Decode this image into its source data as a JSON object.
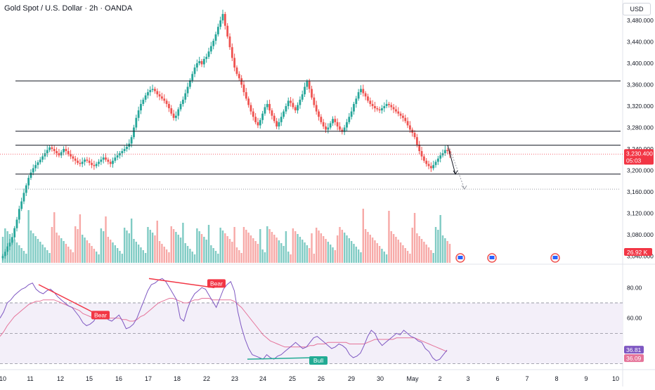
{
  "header": {
    "title": "Gold Spot / U.S. Dollar · 2h · OANDA",
    "currency_button": "USD"
  },
  "price_axis": {
    "ticks": [
      "3,480.000",
      "3,440.000",
      "3,400.000",
      "3,360.000",
      "3,320.000",
      "3,280.000",
      "3,240.000",
      "3,200.000",
      "3,160.000",
      "3,120.000",
      "3,080.000",
      "3,040.000"
    ],
    "tick_values": [
      3480,
      3440,
      3400,
      3360,
      3320,
      3280,
      3240,
      3200,
      3160,
      3120,
      3080,
      3040
    ],
    "last_price_label": "3,230.400",
    "countdown_label": "05:03",
    "volume_label": "26.92 K"
  },
  "rsi_axis": {
    "ticks": [
      "80.00",
      "60.00",
      "40.00"
    ],
    "tick_values": [
      80,
      60,
      40
    ],
    "rsi_label": "36.81",
    "rsi_ma_label": "36.09"
  },
  "time_axis": {
    "labels": [
      "10",
      "11",
      "12",
      "15",
      "16",
      "17",
      "18",
      "22",
      "23",
      "24",
      "25",
      "26",
      "29",
      "30",
      "May",
      "2",
      "3",
      "6",
      "7",
      "8",
      "9",
      "10"
    ]
  },
  "annotations": {
    "bear_1": "Bear",
    "bear_2": "Bear",
    "bull_1": "Bull"
  },
  "colors": {
    "up": "#26a69a",
    "down": "#ef5350",
    "rsi": "#7e57c2",
    "rsi_ma": "#e57399",
    "line": "#131722",
    "last_price": "#f23645",
    "rsi_band": "#f3eff9",
    "rsi_fill_up": "#b2dfdb"
  },
  "chart_data": {
    "type": "candlestick",
    "title": "Gold Spot / U.S. Dollar · 2h · OANDA",
    "price_range": [
      3030,
      3505
    ],
    "rsi_range": [
      28,
      88
    ],
    "horizontal_levels": [
      3367,
      3273,
      3247,
      3193
    ],
    "dotted_levels": [
      3230.4,
      3165
    ],
    "projection": [
      [
        3247,
        3193
      ],
      [
        3240,
        3165
      ]
    ],
    "candle_closes": [
      3040,
      3048,
      3058,
      3065,
      3075,
      3092,
      3108,
      3128,
      3142,
      3158,
      3172,
      3186,
      3196,
      3204,
      3210,
      3215,
      3220,
      3226,
      3232,
      3238,
      3243,
      3240,
      3236,
      3232,
      3228,
      3234,
      3240,
      3236,
      3230,
      3226,
      3222,
      3218,
      3214,
      3212,
      3216,
      3220,
      3218,
      3214,
      3210,
      3208,
      3212,
      3216,
      3220,
      3224,
      3220,
      3216,
      3212,
      3218,
      3224,
      3228,
      3232,
      3236,
      3240,
      3244,
      3250,
      3262,
      3280,
      3298,
      3312,
      3324,
      3332,
      3340,
      3346,
      3350,
      3352,
      3348,
      3342,
      3338,
      3334,
      3330,
      3324,
      3316,
      3306,
      3298,
      3302,
      3314,
      3324,
      3332,
      3344,
      3356,
      3368,
      3380,
      3392,
      3400,
      3404,
      3398,
      3408,
      3412,
      3422,
      3432,
      3442,
      3454,
      3468,
      3480,
      3492,
      3470,
      3450,
      3430,
      3410,
      3392,
      3380,
      3372,
      3360,
      3346,
      3334,
      3322,
      3310,
      3300,
      3290,
      3284,
      3294,
      3306,
      3318,
      3324,
      3312,
      3302,
      3292,
      3282,
      3290,
      3300,
      3310,
      3320,
      3330,
      3326,
      3318,
      3312,
      3322,
      3332,
      3342,
      3356,
      3366,
      3352,
      3336,
      3322,
      3310,
      3300,
      3290,
      3282,
      3276,
      3280,
      3288,
      3296,
      3290,
      3282,
      3276,
      3272,
      3280,
      3290,
      3300,
      3310,
      3324,
      3334,
      3346,
      3352,
      3344,
      3338,
      3330,
      3324,
      3320,
      3316,
      3314,
      3312,
      3316,
      3320,
      3324,
      3322,
      3318,
      3314,
      3310,
      3306,
      3302,
      3298,
      3292,
      3284,
      3276,
      3270,
      3262,
      3248,
      3236,
      3226,
      3218,
      3212,
      3208,
      3204,
      3210,
      3216,
      3222,
      3228,
      3232,
      3238,
      3236,
      3230
    ],
    "rsi_values": [
      60,
      64,
      70,
      72,
      75,
      77,
      79,
      80,
      82,
      83,
      79,
      77,
      76,
      78,
      79,
      77,
      74,
      72,
      70,
      68,
      67,
      64,
      61,
      57,
      55,
      56,
      58,
      62,
      64,
      63,
      59,
      58,
      60,
      62,
      58,
      53,
      54,
      56,
      60,
      66,
      72,
      78,
      82,
      83,
      85,
      86,
      84,
      80,
      76,
      72,
      60,
      58,
      66,
      72,
      76,
      78,
      80,
      79,
      75,
      71,
      67,
      73,
      79,
      82,
      84,
      78,
      64,
      54,
      46,
      40,
      36,
      35,
      34,
      33,
      36,
      34,
      33,
      35,
      36,
      38,
      40,
      42,
      44,
      42,
      40,
      41,
      44,
      47,
      48,
      46,
      44,
      42,
      40,
      41,
      43,
      42,
      40,
      36,
      34,
      35,
      37,
      42,
      48,
      52,
      50,
      45,
      42,
      44,
      46,
      48,
      50,
      49,
      52,
      50,
      48,
      47,
      45,
      44,
      40,
      38,
      34,
      32,
      33,
      36,
      39
    ],
    "rsi_ma_values": [
      48,
      51,
      55,
      58,
      61,
      63,
      65,
      67,
      69,
      70,
      71,
      71,
      72,
      72,
      72,
      72,
      71,
      70,
      69,
      68,
      67,
      66,
      65,
      63,
      62,
      61,
      60,
      60,
      60,
      60,
      60,
      60,
      60,
      60,
      59,
      59,
      58,
      58,
      59,
      61,
      62,
      64,
      66,
      68,
      70,
      71,
      72,
      73,
      73,
      72,
      71,
      70,
      70,
      71,
      72,
      72,
      73,
      73,
      73,
      72,
      72,
      72,
      72,
      72,
      72,
      71,
      69,
      67,
      64,
      61,
      58,
      55,
      52,
      49,
      47,
      45,
      44,
      43,
      42,
      41,
      41,
      41,
      41,
      41,
      41,
      41,
      42,
      42,
      43,
      43,
      43,
      44,
      44,
      44,
      44,
      44,
      44,
      43,
      43,
      43,
      43,
      43,
      44,
      45,
      46,
      46,
      46,
      46,
      46,
      46,
      47,
      47,
      47,
      47,
      47,
      47,
      46,
      45,
      44,
      43,
      42,
      41,
      40,
      39,
      38
    ]
  }
}
